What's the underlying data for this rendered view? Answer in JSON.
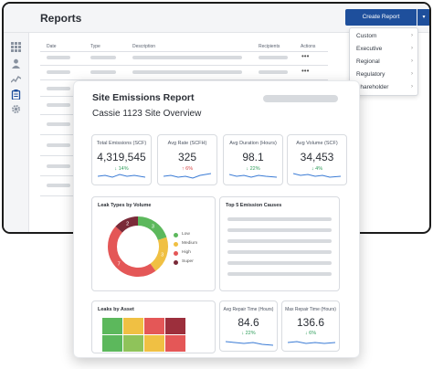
{
  "app": {
    "title": "Reports",
    "create_button": "Create Report",
    "create_caret": "▾",
    "columns": [
      "Date",
      "Type",
      "Description",
      "Recipients",
      "Actions"
    ],
    "row_action": "•••",
    "sidebar_icons": [
      "grid-icon",
      "user-icon",
      "activity-icon",
      "clipboard-icon",
      "gear-icon"
    ]
  },
  "dropdown": {
    "items": [
      {
        "label": "Custom",
        "arrow": "›"
      },
      {
        "label": "Executive",
        "arrow": "›"
      },
      {
        "label": "Regional",
        "arrow": "›"
      },
      {
        "label": "Regulatory",
        "arrow": "›"
      },
      {
        "label": "Shareholder",
        "arrow": "›"
      }
    ]
  },
  "report": {
    "title": "Site Emissions Report",
    "subtitle": "Cassie 1123 Site Overview",
    "kpis": [
      {
        "label": "Total Emissions (SCF)",
        "value": "4,319,545",
        "delta": "14%",
        "direction": "down",
        "color": "#2e9d5a"
      },
      {
        "label": "Avg Rate (SCFH)",
        "value": "325",
        "delta": "6%",
        "direction": "up",
        "color": "#d64545"
      },
      {
        "label": "Avg Duration (Hours)",
        "value": "98.1",
        "delta": "22%",
        "direction": "down",
        "color": "#2e9d5a"
      },
      {
        "label": "Avg Volume (SCF)",
        "value": "34,453",
        "delta": "4%",
        "direction": "down",
        "color": "#2e9d5a"
      }
    ],
    "leak_types": {
      "title": "Leak Types by Volume",
      "legend": [
        {
          "label": "Low",
          "color": "#5cb85c"
        },
        {
          "label": "Medium",
          "color": "#f0c043"
        },
        {
          "label": "High",
          "color": "#e45757"
        },
        {
          "label": "Super",
          "color": "#7a2a38"
        }
      ]
    },
    "top_causes": {
      "title": "Top 5 Emission Causes"
    },
    "leaks_by_asset": {
      "title": "Leaks by Asset"
    },
    "mini_kpis": [
      {
        "label": "Avg Repair Time (Hours)",
        "value": "84.6",
        "delta": "22%",
        "color": "#2e9d5a"
      },
      {
        "label": "Max Repair Time (Hours)",
        "value": "136.6",
        "delta": "6%",
        "color": "#2e9d5a"
      }
    ]
  },
  "chart_data": {
    "type": "pie",
    "title": "Leak Types by Volume",
    "categories": [
      "Low",
      "Medium",
      "High",
      "Super"
    ],
    "values": [
      3,
      3,
      7,
      2
    ],
    "labels": [
      "3",
      "3",
      "7",
      "2"
    ],
    "colors": [
      "#5cb85c",
      "#f0c043",
      "#e45757",
      "#7a2a38"
    ]
  },
  "heatmap": {
    "colors": [
      [
        "#5cb85c",
        "#f0c043",
        "#e45757",
        "#9c2f3c"
      ],
      [
        "#5cb85c",
        "#8fc35a",
        "#f0c043",
        "#e45757"
      ]
    ]
  }
}
